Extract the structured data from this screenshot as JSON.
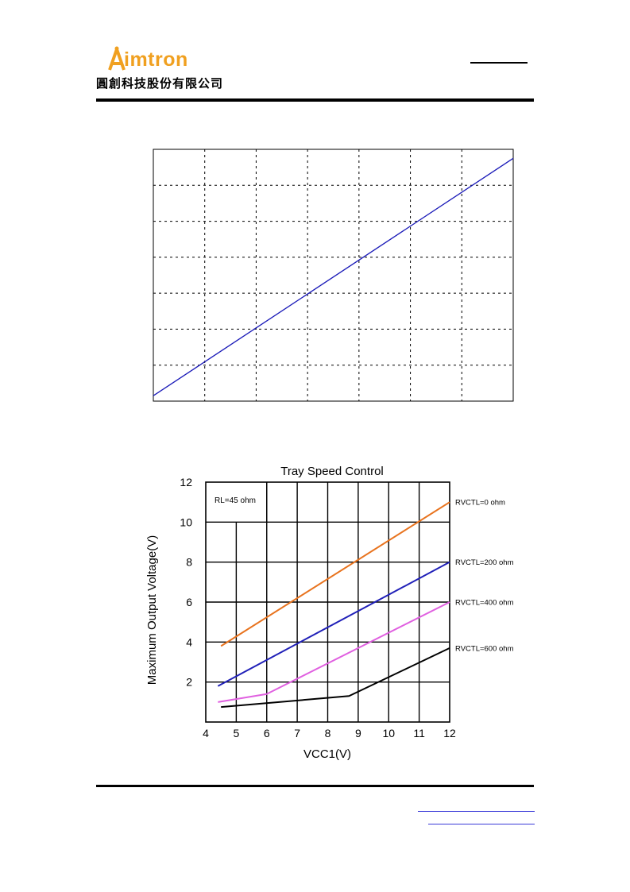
{
  "header": {
    "brand_name": "Aimtron",
    "brand_rest": "imtron",
    "brand_sub": "圓創科技股份有限公司",
    "brand_color": "#f0a020"
  },
  "chart_top": {
    "type": "line",
    "title": "",
    "grid": "dashed",
    "xlim": [
      0,
      7
    ],
    "ylim": [
      0,
      7
    ],
    "series": [
      {
        "color": "#1a1ab8",
        "x": [
          0,
          7
        ],
        "y": [
          0.15,
          6.75
        ]
      }
    ]
  },
  "chart_data": {
    "type": "line",
    "title": "Tray Speed Control",
    "xlabel": "VCC1(V)",
    "ylabel": "Maximum Output Voltage(V)",
    "xlim": [
      4,
      12
    ],
    "ylim": [
      0,
      12
    ],
    "xticks": [
      "4",
      "5",
      "6",
      "7",
      "8",
      "9",
      "10",
      "11",
      "12"
    ],
    "yticks": [
      "2",
      "4",
      "6",
      "8",
      "10",
      "12"
    ],
    "grid": true,
    "annotation": "RL=45 ohm",
    "series": [
      {
        "name": "RVCTL=0 ohm",
        "color": "#e8731e",
        "x": [
          4.5,
          12
        ],
        "y": [
          3.8,
          11.0
        ]
      },
      {
        "name": "RVCTL=200 ohm",
        "color": "#2020b8",
        "x": [
          4.4,
          12
        ],
        "y": [
          1.8,
          8.0
        ]
      },
      {
        "name": "RVCTL=400 ohm",
        "color": "#e060e0",
        "x": [
          4.4,
          6.0,
          12
        ],
        "y": [
          1.0,
          1.4,
          6.0
        ]
      },
      {
        "name": "RVCTL=600 ohm",
        "color": "#000000",
        "x": [
          4.5,
          8.7,
          12
        ],
        "y": [
          0.75,
          1.3,
          3.7
        ]
      }
    ]
  }
}
